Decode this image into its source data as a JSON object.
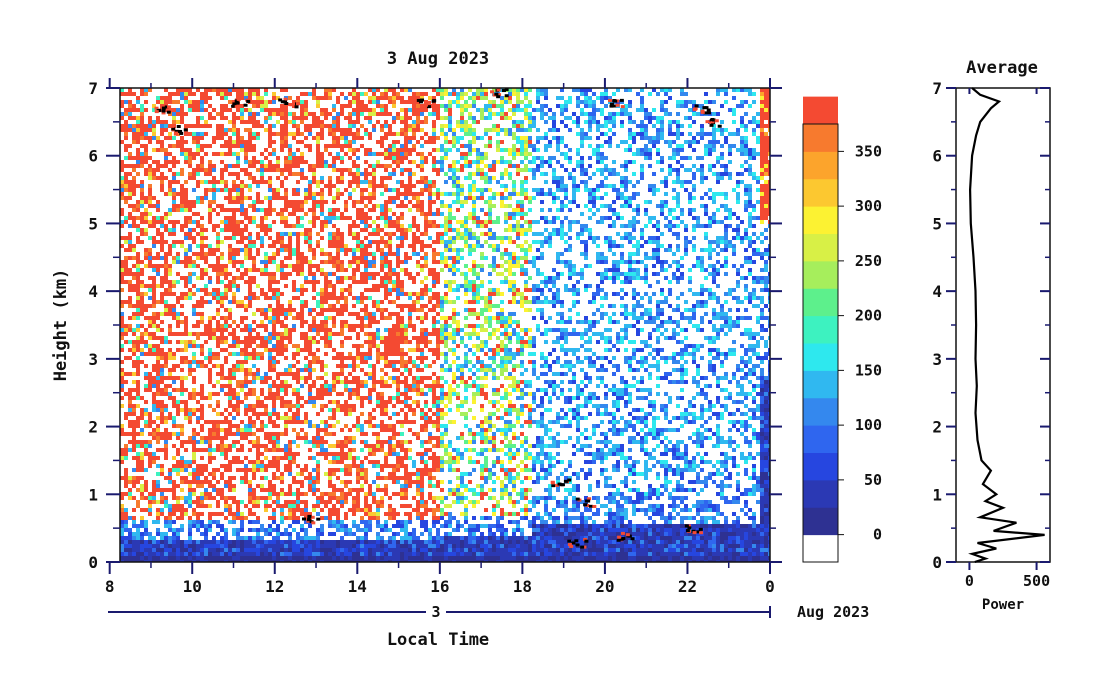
{
  "chart_data": [
    {
      "type": "heatmap",
      "title": "3 Aug 2023",
      "xlabel": "Local Time",
      "ylabel": "Height (km)",
      "x_ticks": [
        "8",
        "10",
        "12",
        "14",
        "16",
        "18",
        "20",
        "22",
        "0"
      ],
      "x_range_hours": [
        8.25,
        24
      ],
      "y_ticks": [
        "0",
        "1",
        "2",
        "3",
        "4",
        "5",
        "6",
        "7"
      ],
      "y_range_km": [
        0,
        7
      ],
      "date_axis": {
        "day_label": "3",
        "month_label": "Aug 2023"
      },
      "colorbar": {
        "ticks": [
          "0",
          "50",
          "100",
          "150",
          "200",
          "250",
          "300",
          "350"
        ],
        "range": [
          -25,
          375
        ],
        "level_step": 25,
        "colors": [
          "#ffffff",
          "#2e3192",
          "#2b39b4",
          "#2646e0",
          "#2f66ef",
          "#3488ee",
          "#30b8f0",
          "#2ee8ee",
          "#3df2c0",
          "#5df08c",
          "#a6ee5c",
          "#d8f046",
          "#fcf232",
          "#fcc830",
          "#fca42c",
          "#f77a2e",
          "#f44a32"
        ]
      },
      "regimes": [
        {
          "t_start": 8.25,
          "t_end": 16.0,
          "upper_level": "red speckle, high values",
          "boundary_layer_km": 0.6
        },
        {
          "t_start": 16.0,
          "t_end": 18.2,
          "upper_level": "mixed green/yellow",
          "boundary_layer_km": 0.7
        },
        {
          "t_start": 18.2,
          "t_end": 23.8,
          "upper_level": "blue speckle, low values",
          "boundary_layer_km": 1.0
        },
        {
          "t_start": 23.8,
          "t_end": 24.0,
          "upper_level": "red column",
          "boundary_layer_km": 5.0
        }
      ],
      "dark_features": [
        {
          "t": 9.3,
          "h": 6.7
        },
        {
          "t": 9.6,
          "h": 6.4
        },
        {
          "t": 11.1,
          "h": 6.8
        },
        {
          "t": 12.3,
          "h": 6.8
        },
        {
          "t": 15.6,
          "h": 6.8
        },
        {
          "t": 17.4,
          "h": 6.95
        },
        {
          "t": 20.2,
          "h": 6.8
        },
        {
          "t": 22.3,
          "h": 6.7
        },
        {
          "t": 22.6,
          "h": 6.5
        },
        {
          "t": 12.8,
          "h": 0.65
        },
        {
          "t": 18.9,
          "h": 1.2
        },
        {
          "t": 19.5,
          "h": 0.9
        },
        {
          "t": 19.3,
          "h": 0.3
        },
        {
          "t": 20.5,
          "h": 0.4
        },
        {
          "t": 22.1,
          "h": 0.5
        }
      ]
    },
    {
      "type": "line",
      "title": "Average",
      "xlabel": "Power",
      "ylabel": "",
      "x_ticks": [
        "0",
        "500"
      ],
      "xlim": [
        -100,
        600
      ],
      "ylim": [
        0,
        7
      ],
      "y_ticks": [
        "0",
        "1",
        "2",
        "3",
        "4",
        "5",
        "6",
        "7"
      ],
      "series": [
        {
          "points": [
            [
              40,
              0.0
            ],
            [
              120,
              0.05
            ],
            [
              20,
              0.12
            ],
            [
              200,
              0.2
            ],
            [
              60,
              0.28
            ],
            [
              560,
              0.4
            ],
            [
              180,
              0.46
            ],
            [
              350,
              0.58
            ],
            [
              80,
              0.66
            ],
            [
              250,
              0.8
            ],
            [
              120,
              0.9
            ],
            [
              200,
              1.0
            ],
            [
              100,
              1.15
            ],
            [
              160,
              1.35
            ],
            [
              90,
              1.5
            ],
            [
              60,
              1.8
            ],
            [
              45,
              2.2
            ],
            [
              55,
              2.6
            ],
            [
              45,
              3.0
            ],
            [
              50,
              3.5
            ],
            [
              45,
              4.0
            ],
            [
              30,
              4.5
            ],
            [
              10,
              5.0
            ],
            [
              5,
              5.5
            ],
            [
              20,
              6.0
            ],
            [
              50,
              6.3
            ],
            [
              80,
              6.5
            ],
            [
              160,
              6.7
            ],
            [
              220,
              6.8
            ],
            [
              80,
              6.9
            ],
            [
              20,
              7.0
            ]
          ]
        }
      ]
    }
  ]
}
